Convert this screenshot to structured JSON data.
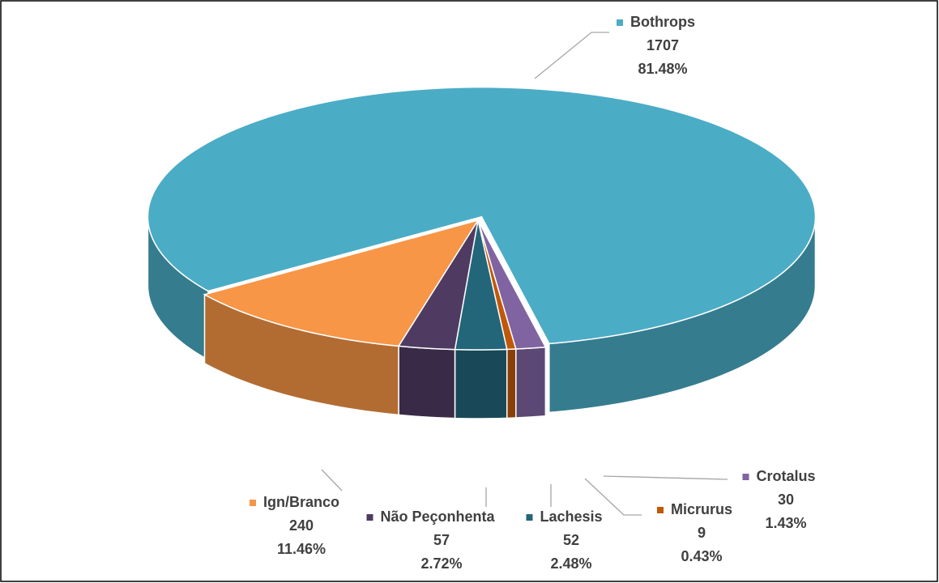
{
  "chart_data": {
    "type": "pie3d",
    "categories": [
      "Bothrops",
      "Crotalus",
      "Micrurus",
      "Lachesis",
      "Não Peçonhenta",
      "Ign/Branco"
    ],
    "values": [
      1707,
      30,
      9,
      52,
      57,
      240
    ],
    "percentages": [
      81.48,
      1.43,
      0.43,
      2.48,
      2.72,
      11.46
    ],
    "percentage_labels": [
      "81.48%",
      "1.43%",
      "0.43%",
      "2.48%",
      "2.72%",
      "11.46%"
    ],
    "colors": [
      "#4bacc6",
      "#8064a2",
      "#c0580a",
      "#23667a",
      "#4f3b62",
      "#f79646"
    ],
    "exploded": [
      "Bothrops"
    ]
  }
}
